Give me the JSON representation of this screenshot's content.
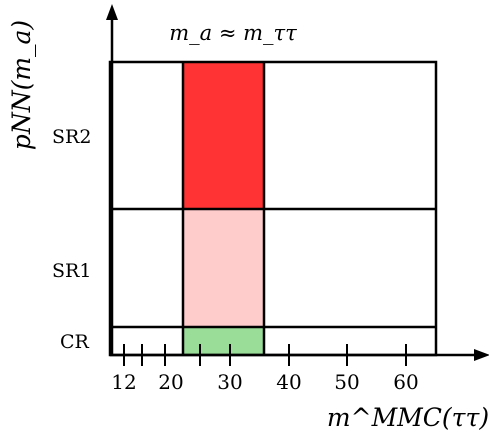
{
  "diagram": {
    "annotation": "m_a ≈ m_ττ",
    "y_axis_title": "pNN(m_a)",
    "x_axis_title": "m^MMC(ττ)",
    "x_tick_labels": [
      "12",
      "20",
      "30",
      "40",
      "50",
      "60"
    ],
    "regions": [
      {
        "label": "SR2"
      },
      {
        "label": "SR1"
      },
      {
        "label": "CR"
      }
    ],
    "colors": {
      "sr2_window": "#ff3333",
      "sr1_window": "#ffcccc",
      "cr_window": "#99dd99",
      "lines": "#000000"
    }
  }
}
